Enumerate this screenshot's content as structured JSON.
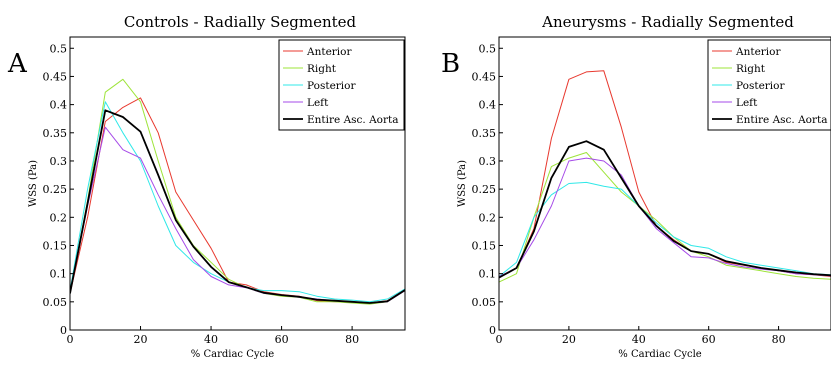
{
  "chart_data": [
    {
      "type": "line",
      "panel_label": "A",
      "title": "Controls - Radially Segmented",
      "xlabel": "% Cardiac Cycle",
      "ylabel": "WSS (Pa)",
      "xlim": [
        0,
        95
      ],
      "ylim": [
        0,
        0.52
      ],
      "xticks": [
        0,
        20,
        40,
        60,
        80
      ],
      "yticks": [
        0,
        0.05,
        0.1,
        0.15,
        0.2,
        0.25,
        0.3,
        0.35,
        0.4,
        0.45,
        0.5
      ],
      "ytick_labels": [
        "0",
        "0.05",
        "0.1",
        "0.15",
        "0.2",
        "0.25",
        "0.3",
        "0.35",
        "0.4",
        "0.45",
        "0.5"
      ],
      "legend_position": "top-right",
      "x": [
        0,
        5,
        10,
        15,
        20,
        25,
        30,
        35,
        40,
        45,
        50,
        55,
        60,
        65,
        70,
        75,
        80,
        85,
        90,
        95
      ],
      "series": [
        {
          "name": "Anterior",
          "color": "#e8392f",
          "width": 1,
          "values": [
            0.065,
            0.2,
            0.37,
            0.395,
            0.412,
            0.35,
            0.245,
            0.195,
            0.145,
            0.085,
            0.08,
            0.068,
            0.063,
            0.06,
            0.052,
            0.05,
            0.05,
            0.048,
            0.052,
            0.072
          ]
        },
        {
          "name": "Right",
          "color": "#9ee43a",
          "width": 1,
          "values": [
            0.065,
            0.23,
            0.422,
            0.445,
            0.405,
            0.3,
            0.2,
            0.15,
            0.12,
            0.09,
            0.075,
            0.065,
            0.06,
            0.058,
            0.05,
            0.05,
            0.048,
            0.046,
            0.05,
            0.07
          ]
        },
        {
          "name": "Posterior",
          "color": "#30e8e8",
          "width": 1,
          "values": [
            0.07,
            0.25,
            0.405,
            0.35,
            0.3,
            0.22,
            0.15,
            0.12,
            0.1,
            0.085,
            0.075,
            0.07,
            0.07,
            0.068,
            0.06,
            0.055,
            0.053,
            0.05,
            0.055,
            0.073
          ]
        },
        {
          "name": "Left",
          "color": "#a64be8",
          "width": 1,
          "values": [
            0.065,
            0.22,
            0.36,
            0.32,
            0.305,
            0.24,
            0.18,
            0.125,
            0.095,
            0.08,
            0.075,
            0.065,
            0.062,
            0.058,
            0.055,
            0.052,
            0.05,
            0.048,
            0.05,
            0.07
          ]
        },
        {
          "name": "Entire Asc. Aorta",
          "color": "#000000",
          "width": 1.8,
          "values": [
            0.065,
            0.225,
            0.39,
            0.378,
            0.352,
            0.275,
            0.195,
            0.148,
            0.112,
            0.085,
            0.076,
            0.066,
            0.062,
            0.059,
            0.054,
            0.052,
            0.05,
            0.048,
            0.051,
            0.071
          ]
        }
      ]
    },
    {
      "type": "line",
      "panel_label": "B",
      "title": "Aneurysms - Radially Segmented",
      "xlabel": "% Cardiac Cycle",
      "ylabel": "WSS (Pa)",
      "xlim": [
        0,
        95
      ],
      "ylim": [
        0,
        0.52
      ],
      "xticks": [
        0,
        20,
        40,
        60,
        80
      ],
      "yticks": [
        0,
        0.05,
        0.1,
        0.15,
        0.2,
        0.25,
        0.3,
        0.35,
        0.4,
        0.45,
        0.5
      ],
      "ytick_labels": [
        "0",
        "0.05",
        "0.1",
        "0.15",
        "0.2",
        "0.25",
        "0.3",
        "0.35",
        "0.4",
        "0.45",
        "0.5"
      ],
      "legend_position": "top-right",
      "x": [
        0,
        5,
        10,
        15,
        20,
        25,
        30,
        35,
        40,
        45,
        50,
        55,
        60,
        65,
        70,
        75,
        80,
        85,
        90,
        95
      ],
      "series": [
        {
          "name": "Anterior",
          "color": "#e8392f",
          "width": 1,
          "values": [
            0.095,
            0.11,
            0.18,
            0.34,
            0.445,
            0.458,
            0.46,
            0.36,
            0.245,
            0.185,
            0.16,
            0.14,
            0.135,
            0.12,
            0.115,
            0.11,
            0.105,
            0.1,
            0.098,
            0.095
          ]
        },
        {
          "name": "Right",
          "color": "#9ee43a",
          "width": 1,
          "values": [
            0.085,
            0.1,
            0.2,
            0.29,
            0.305,
            0.315,
            0.28,
            0.245,
            0.22,
            0.195,
            0.165,
            0.14,
            0.13,
            0.115,
            0.11,
            0.105,
            0.1,
            0.095,
            0.092,
            0.09
          ]
        },
        {
          "name": "Posterior",
          "color": "#30e8e8",
          "width": 1,
          "values": [
            0.095,
            0.12,
            0.2,
            0.24,
            0.26,
            0.262,
            0.255,
            0.25,
            0.22,
            0.19,
            0.165,
            0.15,
            0.145,
            0.13,
            0.12,
            0.115,
            0.11,
            0.105,
            0.1,
            0.098
          ]
        },
        {
          "name": "Left",
          "color": "#a64be8",
          "width": 1,
          "values": [
            0.095,
            0.11,
            0.16,
            0.22,
            0.3,
            0.305,
            0.3,
            0.275,
            0.22,
            0.18,
            0.155,
            0.13,
            0.128,
            0.118,
            0.112,
            0.108,
            0.105,
            0.1,
            0.098,
            0.096
          ]
        },
        {
          "name": "Entire Asc. Aorta",
          "color": "#000000",
          "width": 1.8,
          "values": [
            0.093,
            0.11,
            0.175,
            0.27,
            0.325,
            0.335,
            0.32,
            0.27,
            0.22,
            0.185,
            0.158,
            0.14,
            0.135,
            0.122,
            0.116,
            0.11,
            0.106,
            0.102,
            0.099,
            0.097
          ]
        }
      ]
    }
  ]
}
